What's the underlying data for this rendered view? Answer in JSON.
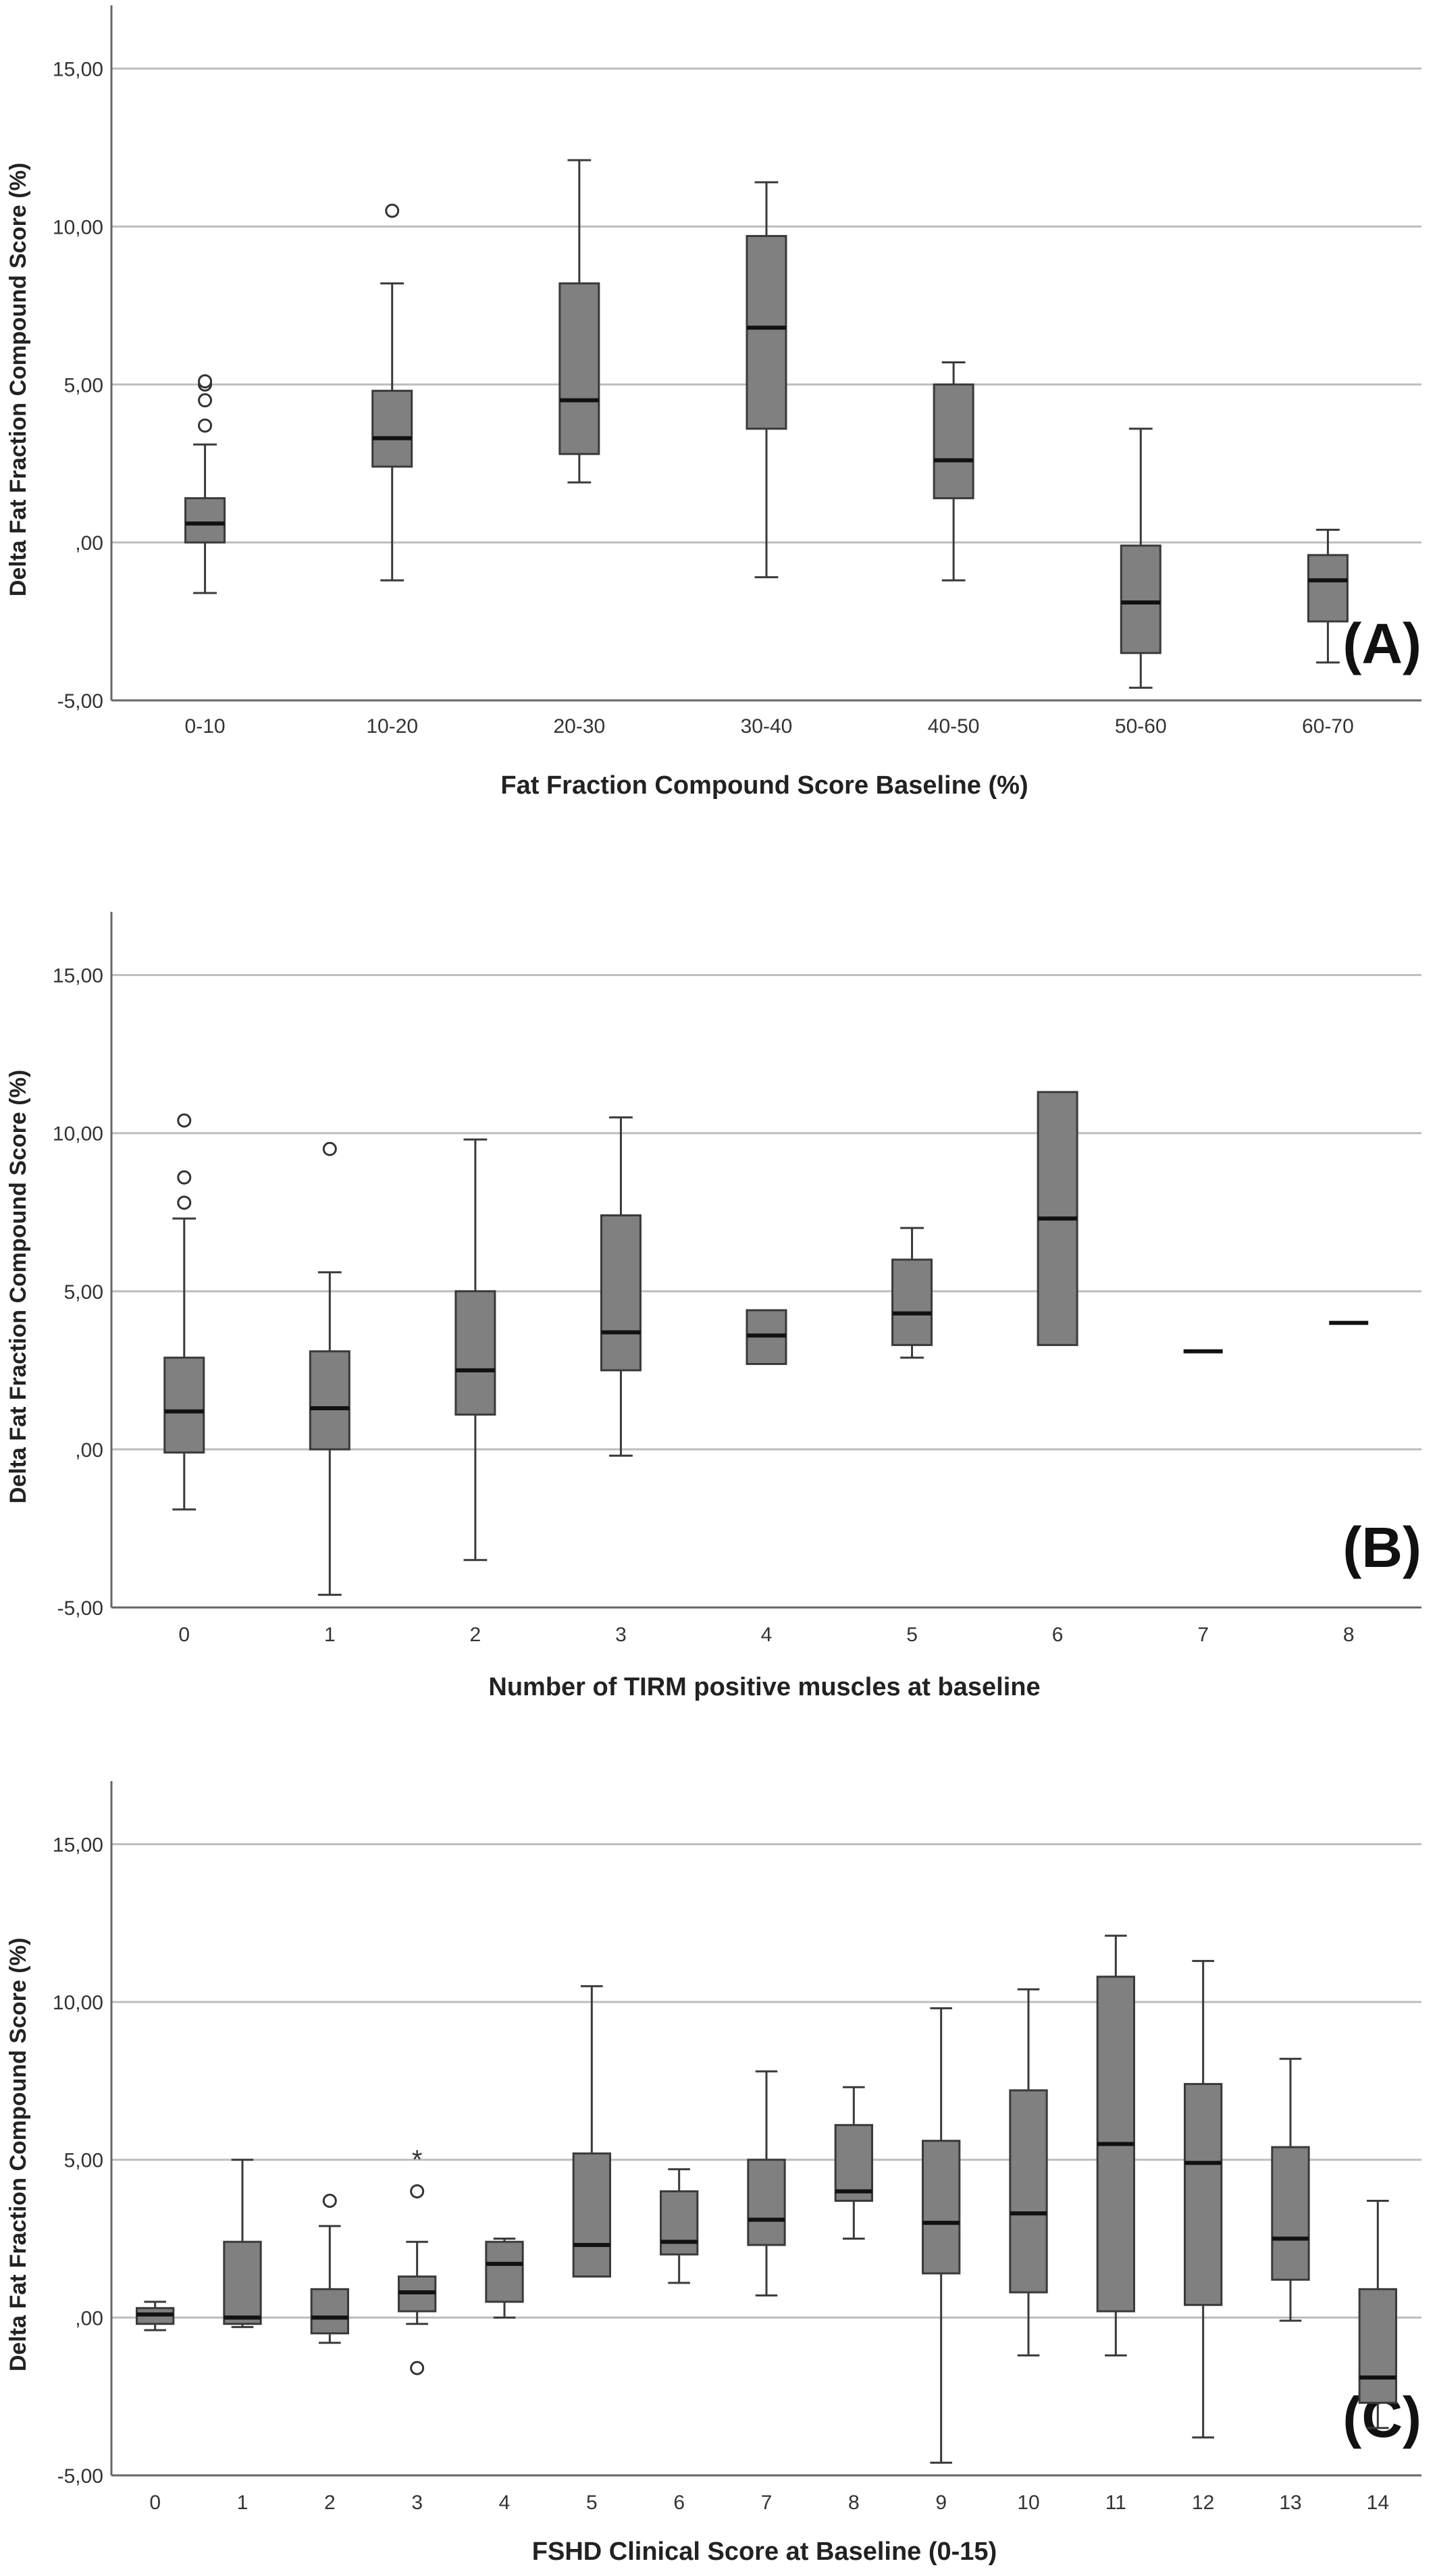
{
  "chart_data": [
    {
      "type": "box",
      "panel_label": "(A)",
      "xlabel": "Fat Fraction Compound Score Baseline (%)",
      "ylabel": "Delta Fat Fraction Compound Score (%)",
      "ylim": [
        -5,
        17
      ],
      "yticks": [
        -5,
        0,
        5,
        10,
        15
      ],
      "ytick_labels": [
        "-5,00",
        ",00",
        "5,00",
        "10,00",
        "15,00"
      ],
      "grid": true,
      "categories": [
        "0-10",
        "10-20",
        "20-30",
        "30-40",
        "40-50",
        "50-60",
        "60-70"
      ],
      "boxes": [
        {
          "min": -1.6,
          "q1": 0.0,
          "median": 0.6,
          "q3": 1.4,
          "max": 3.1,
          "outliers": [
            3.7,
            4.5,
            5.0,
            5.1
          ]
        },
        {
          "min": -1.2,
          "q1": 2.4,
          "median": 3.3,
          "q3": 4.8,
          "max": 8.2,
          "outliers": [
            10.5
          ]
        },
        {
          "min": 1.9,
          "q1": 2.8,
          "median": 4.5,
          "q3": 8.2,
          "max": 12.1,
          "outliers": []
        },
        {
          "min": -1.1,
          "q1": 3.6,
          "median": 6.8,
          "q3": 9.7,
          "max": 11.4,
          "outliers": []
        },
        {
          "min": -1.2,
          "q1": 1.4,
          "median": 2.6,
          "q3": 5.0,
          "max": 5.7,
          "outliers": []
        },
        {
          "min": -4.6,
          "q1": -3.5,
          "median": -1.9,
          "q3": -0.1,
          "max": 3.6,
          "outliers": []
        },
        {
          "min": -3.8,
          "q1": -2.5,
          "median": -1.2,
          "q3": -0.4,
          "max": 0.4,
          "outliers": []
        }
      ]
    },
    {
      "type": "box",
      "panel_label": "(B)",
      "xlabel": "Number of TIRM positive muscles at baseline",
      "ylabel": "Delta Fat Fraction Compound Score (%)",
      "ylim": [
        -5,
        17
      ],
      "yticks": [
        -5,
        0,
        5,
        10,
        15
      ],
      "ytick_labels": [
        "-5,00",
        ",00",
        "5,00",
        "10,00",
        "15,00"
      ],
      "grid": true,
      "categories": [
        "0",
        "1",
        "2",
        "3",
        "4",
        "5",
        "6",
        "7",
        "8"
      ],
      "boxes": [
        {
          "min": -1.9,
          "q1": -0.1,
          "median": 1.2,
          "q3": 2.9,
          "max": 7.3,
          "outliers": [
            7.8,
            8.6,
            10.4
          ]
        },
        {
          "min": -4.6,
          "q1": 0.0,
          "median": 1.3,
          "q3": 3.1,
          "max": 5.6,
          "outliers": [
            9.5
          ]
        },
        {
          "min": -3.5,
          "q1": 1.1,
          "median": 2.5,
          "q3": 5.0,
          "max": 9.8,
          "outliers": []
        },
        {
          "min": -0.2,
          "q1": 2.5,
          "median": 3.7,
          "q3": 7.4,
          "max": 10.5,
          "outliers": []
        },
        {
          "min": 2.7,
          "q1": 2.7,
          "median": 3.6,
          "q3": 4.4,
          "max": 4.4,
          "outliers": []
        },
        {
          "min": 2.9,
          "q1": 3.3,
          "median": 4.3,
          "q3": 6.0,
          "max": 7.0,
          "outliers": []
        },
        {
          "min": 3.3,
          "q1": 3.3,
          "median": 7.3,
          "q3": 11.3,
          "max": 11.3,
          "outliers": []
        },
        {
          "min": 3.1,
          "q1": 3.1,
          "median": 3.1,
          "q3": 3.1,
          "max": 3.1,
          "outliers": []
        },
        {
          "min": 4.0,
          "q1": 4.0,
          "median": 4.0,
          "q3": 4.0,
          "max": 4.0,
          "outliers": []
        }
      ]
    },
    {
      "type": "box",
      "panel_label": "(C)",
      "xlabel": "FSHD Clinical Score at Baseline (0-15)",
      "ylabel": "Delta Fat Fraction Compound Score (%)",
      "ylim": [
        -5,
        17
      ],
      "yticks": [
        -5,
        0,
        5,
        10,
        15
      ],
      "ytick_labels": [
        "-5,00",
        ",00",
        "5,00",
        "10,00",
        "15,00"
      ],
      "grid": true,
      "categories": [
        "0",
        "1",
        "2",
        "3",
        "4",
        "5",
        "6",
        "7",
        "8",
        "9",
        "10",
        "11",
        "12",
        "13",
        "14"
      ],
      "boxes": [
        {
          "min": -0.4,
          "q1": -0.2,
          "median": 0.1,
          "q3": 0.3,
          "max": 0.5,
          "outliers": []
        },
        {
          "min": -0.3,
          "q1": -0.2,
          "median": 0.0,
          "q3": 2.4,
          "max": 5.0,
          "outliers": []
        },
        {
          "min": -0.8,
          "q1": -0.5,
          "median": 0.0,
          "q3": 0.9,
          "max": 2.9,
          "outliers": [
            3.7
          ]
        },
        {
          "min": -0.2,
          "q1": 0.2,
          "median": 0.8,
          "q3": 1.3,
          "max": 2.4,
          "outliers": [
            -1.6,
            4.0
          ],
          "extremes": [
            5.1
          ]
        },
        {
          "min": 0.0,
          "q1": 0.5,
          "median": 1.7,
          "q3": 2.4,
          "max": 2.5,
          "outliers": []
        },
        {
          "min": 1.3,
          "q1": 1.3,
          "median": 2.3,
          "q3": 5.2,
          "max": 10.5,
          "outliers": []
        },
        {
          "min": 1.1,
          "q1": 2.0,
          "median": 2.4,
          "q3": 4.0,
          "max": 4.7,
          "outliers": []
        },
        {
          "min": 0.7,
          "q1": 2.3,
          "median": 3.1,
          "q3": 5.0,
          "max": 7.8,
          "outliers": []
        },
        {
          "min": 2.5,
          "q1": 3.7,
          "median": 4.0,
          "q3": 6.1,
          "max": 7.3,
          "outliers": []
        },
        {
          "min": -4.6,
          "q1": 1.4,
          "median": 3.0,
          "q3": 5.6,
          "max": 9.8,
          "outliers": []
        },
        {
          "min": -1.2,
          "q1": 0.8,
          "median": 3.3,
          "q3": 7.2,
          "max": 10.4,
          "outliers": []
        },
        {
          "min": -1.2,
          "q1": 0.2,
          "median": 5.5,
          "q3": 10.8,
          "max": 12.1,
          "outliers": []
        },
        {
          "min": -3.8,
          "q1": 0.4,
          "median": 4.9,
          "q3": 7.4,
          "max": 11.3,
          "outliers": []
        },
        {
          "min": -0.1,
          "q1": 1.2,
          "median": 2.5,
          "q3": 5.4,
          "max": 8.2,
          "outliers": []
        },
        {
          "min": -3.5,
          "q1": -2.7,
          "median": -1.9,
          "q3": 0.9,
          "max": 3.7,
          "outliers": []
        }
      ]
    }
  ],
  "colors": {
    "box_fill": "#808080",
    "box_stroke": "#3a3a3a",
    "gridline": "#bdbdbd",
    "axis": "#666666",
    "background": "#ffffff"
  }
}
